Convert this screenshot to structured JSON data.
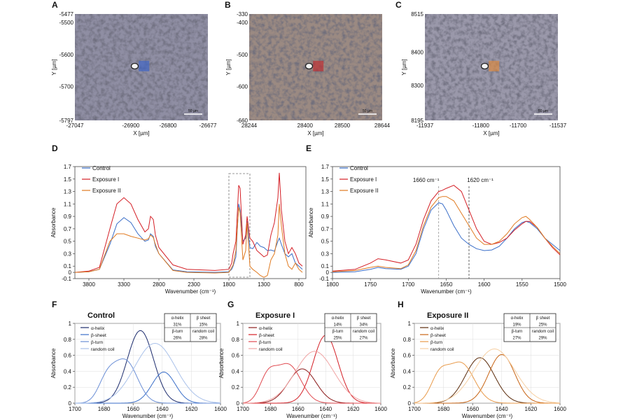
{
  "micrographs": [
    {
      "panel": "A",
      "xticks": [
        "-27047",
        "-26900",
        "-26800",
        "-26677"
      ],
      "yticks": [
        "-5477",
        "-5500",
        "-5600",
        "-5700",
        "-5797"
      ],
      "xlabel": "X [µm]",
      "ylabel": "Y [µm]",
      "scalebar": "50 µm",
      "roi_color": "#3a63c8"
    },
    {
      "panel": "B",
      "xticks": [
        "28244",
        "28400",
        "28500",
        "28644"
      ],
      "yticks": [
        "-330",
        "-400",
        "-500",
        "-600",
        "-660"
      ],
      "xlabel": "X [µm]",
      "ylabel": "Y [µm]",
      "scalebar": "50 µm",
      "roi_color": "#c0282c"
    },
    {
      "panel": "C",
      "xticks": [
        "-11937",
        "-11800",
        "-11700",
        "-11537"
      ],
      "yticks": [
        "8515",
        "8400",
        "8300",
        "8195"
      ],
      "xlabel": "X [µm]",
      "ylabel": "Y [µm]",
      "scalebar": "50 µm",
      "roi_color": "#e0883a"
    }
  ],
  "colors": {
    "control": "#3a6ec8",
    "exposure1": "#d41f26",
    "exposure2": "#e07a20"
  },
  "chart_data": [
    {
      "panel": "D",
      "type": "line",
      "xlabel": "Wavenumber (cm⁻¹)",
      "ylabel": "Absorbance",
      "xlim": [
        4000,
        700
      ],
      "ylim": [
        -0.1,
        1.7
      ],
      "xticks": [
        3800,
        3300,
        2800,
        2300,
        1800,
        1300,
        800
      ],
      "yticks": [
        -0.1,
        0,
        0.1,
        0.3,
        0.5,
        0.7,
        0.9,
        1.1,
        1.3,
        1.5,
        1.7
      ],
      "annotation": "dashed box 1800–1500",
      "legend": [
        "Control",
        "Exposure I",
        "Exposure II"
      ],
      "series": [
        {
          "name": "Control",
          "x": [
            4000,
            3800,
            3650,
            3500,
            3400,
            3300,
            3200,
            3100,
            3000,
            2950,
            2920,
            2880,
            2850,
            2800,
            2600,
            2400,
            2000,
            1800,
            1760,
            1740,
            1700,
            1660,
            1640,
            1600,
            1560,
            1540,
            1500,
            1460,
            1400,
            1350,
            1300,
            1250,
            1200,
            1150,
            1100,
            1080,
            1050,
            1000,
            950,
            900,
            850,
            800,
            750
          ],
          "y": [
            0.0,
            0.01,
            0.05,
            0.45,
            0.78,
            0.88,
            0.8,
            0.62,
            0.5,
            0.52,
            0.62,
            0.58,
            0.42,
            0.3,
            0.04,
            0.01,
            0.0,
            0.01,
            0.05,
            0.1,
            0.25,
            1.1,
            1.0,
            0.5,
            0.55,
            0.82,
            0.4,
            0.38,
            0.48,
            0.42,
            0.4,
            0.35,
            0.36,
            0.34,
            0.5,
            0.55,
            0.45,
            0.3,
            0.25,
            0.3,
            0.15,
            0.1,
            0.05
          ]
        },
        {
          "name": "Exposure I",
          "x": [
            4000,
            3800,
            3650,
            3500,
            3400,
            3300,
            3200,
            3100,
            3000,
            2950,
            2920,
            2880,
            2850,
            2800,
            2600,
            2400,
            2000,
            1800,
            1760,
            1740,
            1700,
            1660,
            1640,
            1600,
            1560,
            1540,
            1500,
            1460,
            1400,
            1350,
            1300,
            1250,
            1200,
            1150,
            1100,
            1080,
            1050,
            1000,
            950,
            900,
            850,
            800,
            750
          ],
          "y": [
            0.0,
            0.02,
            0.08,
            0.7,
            1.1,
            1.2,
            1.1,
            0.85,
            0.65,
            0.7,
            0.9,
            0.85,
            0.6,
            0.4,
            0.12,
            0.05,
            0.03,
            0.05,
            0.15,
            0.3,
            0.5,
            1.4,
            1.35,
            0.45,
            0.6,
            0.9,
            0.55,
            0.5,
            0.35,
            0.3,
            0.25,
            0.28,
            0.6,
            0.8,
            1.2,
            1.6,
            1.0,
            0.5,
            0.3,
            0.4,
            0.3,
            0.15,
            0.1
          ]
        },
        {
          "name": "Exposure II",
          "x": [
            4000,
            3800,
            3650,
            3500,
            3400,
            3300,
            3200,
            3100,
            3000,
            2950,
            2920,
            2880,
            2850,
            2800,
            2600,
            2400,
            2000,
            1800,
            1760,
            1740,
            1700,
            1660,
            1640,
            1600,
            1560,
            1540,
            1500,
            1460,
            1400,
            1350,
            1300,
            1250,
            1200,
            1150,
            1100,
            1080,
            1050,
            1000,
            950,
            900,
            850,
            800,
            750
          ],
          "y": [
            0.0,
            0.01,
            0.05,
            0.5,
            0.62,
            0.62,
            0.58,
            0.55,
            0.52,
            0.54,
            0.6,
            0.56,
            0.45,
            0.3,
            0.03,
            0.0,
            -0.01,
            0.0,
            0.08,
            0.12,
            0.35,
            1.05,
            0.95,
            0.2,
            0.35,
            0.8,
            0.1,
            0.05,
            0.0,
            -0.05,
            -0.08,
            -0.05,
            0.2,
            0.3,
            0.6,
            1.1,
            0.75,
            0.3,
            0.1,
            0.05,
            0.15,
            0.05,
            0.0
          ]
        }
      ]
    },
    {
      "panel": "E",
      "type": "line",
      "xlabel": "Wavenumber (cm⁻¹)",
      "ylabel": "Absorbance",
      "xlim": [
        1800,
        1500
      ],
      "ylim": [
        -0.1,
        1.7
      ],
      "xticks": [
        1800,
        1750,
        1700,
        1650,
        1600,
        1550,
        1500
      ],
      "yticks": [
        -0.1,
        0,
        0.1,
        0.3,
        0.5,
        0.7,
        0.9,
        1.1,
        1.3,
        1.5,
        1.7
      ],
      "vlines": [
        {
          "x": 1660,
          "label": "1660 cm⁻¹"
        },
        {
          "x": 1620,
          "label": "1620 cm⁻¹"
        }
      ],
      "legend": [
        "Control",
        "Exposure I",
        "Exposure II"
      ],
      "series": [
        {
          "name": "Control",
          "x": [
            1800,
            1770,
            1750,
            1740,
            1730,
            1710,
            1700,
            1690,
            1680,
            1670,
            1660,
            1655,
            1650,
            1640,
            1630,
            1620,
            1610,
            1600,
            1590,
            1580,
            1570,
            1560,
            1550,
            1545,
            1540,
            1530,
            1520,
            1510,
            1500
          ],
          "y": [
            0.0,
            0.01,
            0.05,
            0.08,
            0.06,
            0.05,
            0.1,
            0.3,
            0.7,
            1.0,
            1.12,
            1.1,
            1.0,
            0.75,
            0.55,
            0.45,
            0.38,
            0.35,
            0.36,
            0.42,
            0.55,
            0.7,
            0.8,
            0.82,
            0.8,
            0.7,
            0.55,
            0.45,
            0.35
          ]
        },
        {
          "name": "Exposure I",
          "x": [
            1800,
            1770,
            1750,
            1740,
            1730,
            1710,
            1700,
            1690,
            1680,
            1670,
            1660,
            1655,
            1650,
            1640,
            1630,
            1620,
            1610,
            1600,
            1590,
            1580,
            1570,
            1560,
            1550,
            1545,
            1540,
            1530,
            1520,
            1510,
            1500
          ],
          "y": [
            0.02,
            0.05,
            0.15,
            0.22,
            0.2,
            0.15,
            0.2,
            0.45,
            0.85,
            1.15,
            1.3,
            1.32,
            1.35,
            1.4,
            1.3,
            1.0,
            0.7,
            0.5,
            0.45,
            0.48,
            0.55,
            0.68,
            0.78,
            0.82,
            0.82,
            0.72,
            0.55,
            0.4,
            0.28
          ]
        },
        {
          "name": "Exposure II",
          "x": [
            1800,
            1770,
            1750,
            1740,
            1730,
            1710,
            1700,
            1690,
            1680,
            1670,
            1660,
            1655,
            1650,
            1640,
            1630,
            1620,
            1610,
            1600,
            1590,
            1580,
            1570,
            1560,
            1550,
            1545,
            1540,
            1530,
            1520,
            1510,
            1500
          ],
          "y": [
            0.01,
            0.03,
            0.08,
            0.1,
            0.08,
            0.06,
            0.12,
            0.35,
            0.75,
            1.05,
            1.2,
            1.22,
            1.22,
            1.15,
            0.95,
            0.75,
            0.55,
            0.45,
            0.45,
            0.5,
            0.62,
            0.78,
            0.88,
            0.9,
            0.85,
            0.72,
            0.55,
            0.42,
            0.3
          ]
        }
      ]
    },
    {
      "panel": "F",
      "title": "Control",
      "type": "line",
      "xlabel": "Wavenumber (cm⁻¹)",
      "ylabel": "Absorbance",
      "xlim": [
        1700,
        1600
      ],
      "ylim": [
        0,
        1.0
      ],
      "xticks": [
        1700,
        1680,
        1660,
        1640,
        1620,
        1600
      ],
      "yticks": [
        0,
        0.2,
        0.4,
        0.6,
        0.8,
        1.0
      ],
      "legend": [
        "α-helix",
        "β-sheet",
        "β-turn",
        "random coil"
      ],
      "table": [
        [
          "α-helix",
          "β sheet"
        ],
        [
          "31%",
          "15%"
        ],
        [
          "β-turn",
          "random coil"
        ],
        [
          "26%",
          "28%"
        ]
      ],
      "series": [
        {
          "name": "α-helix",
          "color": "#1a2a6c",
          "center": 1655,
          "width": 9,
          "amp": 0.91
        },
        {
          "name": "β-sheet",
          "color": "#3a6ec8",
          "center": 1639,
          "width": 8,
          "amp": 0.39
        },
        {
          "name": "β-turn",
          "color": "#6b8fd6",
          "center": 1665,
          "width": 8,
          "amp": 0.52,
          "shoulder": {
            "center": 1678,
            "width": 6,
            "amp": 0.28
          }
        },
        {
          "name": "random coil",
          "color": "#a9c1ea",
          "center": 1645,
          "width": 14,
          "amp": 0.75
        }
      ]
    },
    {
      "panel": "G",
      "title": "Exposure I",
      "type": "line",
      "xlabel": "Wavenumber (cm⁻¹)",
      "ylabel": "Absorbance",
      "xlim": [
        1700,
        1600
      ],
      "ylim": [
        0,
        1.0
      ],
      "xticks": [
        1700,
        1680,
        1660,
        1640,
        1620,
        1600
      ],
      "yticks": [
        0,
        0.2,
        0.4,
        0.6,
        0.8,
        1.0
      ],
      "legend": [
        "α-helix",
        "β-sheet",
        "β-turn",
        "random coil"
      ],
      "table": [
        [
          "α-helix",
          "β sheet"
        ],
        [
          "14%",
          "34%"
        ],
        [
          "β-turn",
          "random coil"
        ],
        [
          "25%",
          "27%"
        ]
      ],
      "series": [
        {
          "name": "α-helix",
          "color": "#8b1a1a",
          "center": 1657,
          "width": 10,
          "amp": 0.43
        },
        {
          "name": "β-sheet",
          "color": "#d41f26",
          "center": 1640,
          "width": 9,
          "amp": 0.85
        },
        {
          "name": "β-turn",
          "color": "#e04a50",
          "center": 1667,
          "width": 9,
          "amp": 0.48,
          "shoulder": {
            "center": 1682,
            "width": 6,
            "amp": 0.3
          }
        },
        {
          "name": "random coil",
          "color": "#f0a3a3",
          "center": 1648,
          "width": 14,
          "amp": 0.65
        }
      ]
    },
    {
      "panel": "H",
      "title": "Exposure II",
      "type": "line",
      "xlabel": "Wavenumber (cm⁻¹)",
      "ylabel": "Absorbance",
      "xlim": [
        1700,
        1600
      ],
      "ylim": [
        0,
        1.0
      ],
      "xticks": [
        1700,
        1680,
        1660,
        1640,
        1620,
        1600
      ],
      "yticks": [
        0,
        0.2,
        0.4,
        0.6,
        0.8,
        1.0
      ],
      "legend": [
        "α-helix",
        "β-sheet",
        "β-turn",
        "random coil"
      ],
      "table": [
        [
          "α-helix",
          "β sheet"
        ],
        [
          "19%",
          "25%"
        ],
        [
          "β-turn",
          "random coil"
        ],
        [
          "27%",
          "29%"
        ]
      ],
      "series": [
        {
          "name": "α-helix",
          "color": "#5a2a0a",
          "center": 1655,
          "width": 10,
          "amp": 0.57
        },
        {
          "name": "β-sheet",
          "color": "#c86414",
          "center": 1640,
          "width": 9,
          "amp": 0.61
        },
        {
          "name": "β-turn",
          "color": "#e89a4a",
          "center": 1668,
          "width": 9,
          "amp": 0.5,
          "shoulder": {
            "center": 1683,
            "width": 6,
            "amp": 0.3
          }
        },
        {
          "name": "random coil",
          "color": "#f6cfa2",
          "center": 1645,
          "width": 14,
          "amp": 0.68
        }
      ]
    }
  ]
}
